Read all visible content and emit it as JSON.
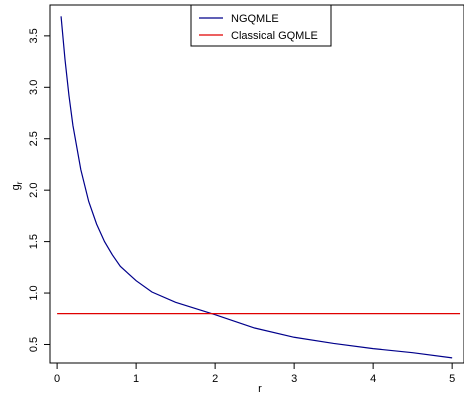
{
  "chart_data": {
    "type": "line",
    "title": "",
    "xlabel": "r",
    "ylabel": "g",
    "ylabel_subscript": "r",
    "xlim": [
      0,
      5
    ],
    "ylim": [
      0.35,
      3.7
    ],
    "xticks": [
      "0",
      "1",
      "2",
      "3",
      "4",
      "5"
    ],
    "yticks": [
      "0.5",
      "1.0",
      "1.5",
      "2.0",
      "2.5",
      "3.0",
      "3.5"
    ],
    "grid": false,
    "legend_position": "top-center",
    "series": [
      {
        "name": "NGQMLE",
        "color": "#00008B",
        "x": [
          0.05,
          0.1,
          0.15,
          0.2,
          0.3,
          0.4,
          0.5,
          0.6,
          0.7,
          0.8,
          1.0,
          1.2,
          1.5,
          2.0,
          2.5,
          3.0,
          3.5,
          4.0,
          4.5,
          5.0
        ],
        "y": [
          3.69,
          3.27,
          2.92,
          2.63,
          2.2,
          1.89,
          1.67,
          1.5,
          1.37,
          1.26,
          1.12,
          1.01,
          0.91,
          0.79,
          0.66,
          0.57,
          0.51,
          0.46,
          0.42,
          0.37
        ]
      },
      {
        "name": "Classical GQMLE",
        "color": "#E00000",
        "x": [
          0.0,
          5.1
        ],
        "y": [
          0.8,
          0.8
        ]
      }
    ]
  }
}
